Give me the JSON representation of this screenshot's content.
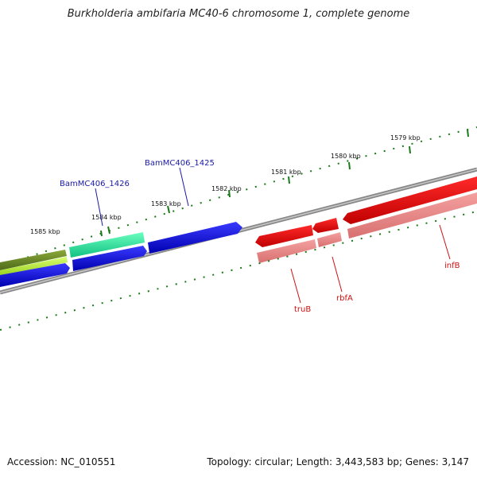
{
  "title": "Burkholderia ambifaria MC40-6 chromosome 1, complete genome",
  "footer": {
    "accession": "Accession: NC_010551",
    "summary": "Topology: circular; Length: 3,443,583 bp; Genes: 3,147"
  },
  "ticks": [
    "1579 kbp",
    "1580 kbp",
    "1581 kbp",
    "1582 kbp",
    "1583 kbp",
    "1584 kbp",
    "1585 kbp"
  ],
  "genes": [
    {
      "name": "BamMC406_1425",
      "color": "#1a1aa6"
    },
    {
      "name": "BamMC406_1426",
      "color": "#1a1aa6"
    },
    {
      "name": "truB",
      "color": "#cc1111"
    },
    {
      "name": "rbfA",
      "color": "#cc1111"
    },
    {
      "name": "infB",
      "color": "#cc1111"
    }
  ],
  "colors": {
    "forward_strand": "#0000e0",
    "reverse_strand": "#ee0000",
    "reverse_light": "#f08a8a",
    "gc_green": "#20e8a0",
    "olive": "#6b8a2a",
    "lime": "#b8f040",
    "backbone": "#888888",
    "tick_green": "#1a7a1a"
  }
}
